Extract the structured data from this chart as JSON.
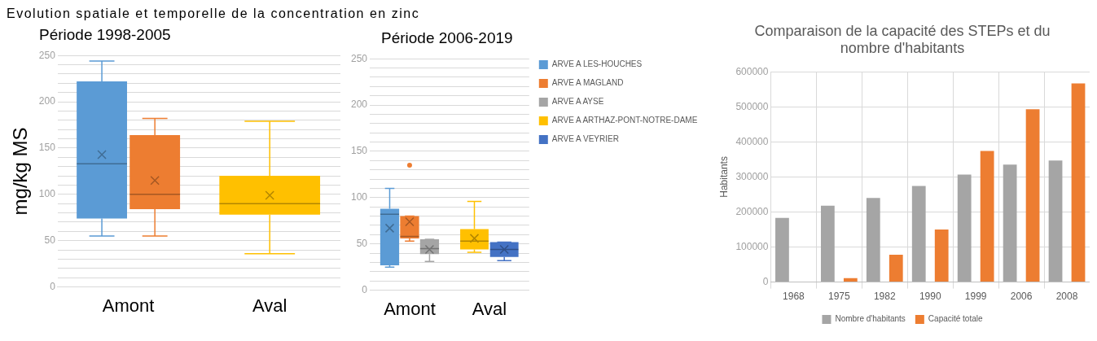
{
  "chart_data": [
    {
      "type": "box",
      "annotations": [
        "Evolution spatiale et temporelle de la concentration en zinc"
      ],
      "title": "Période 1998-2005",
      "ylabel": "mg/kg MS",
      "categories": [
        "Amont",
        "Aval"
      ],
      "ylim": [
        0,
        250
      ],
      "yticks": [
        0,
        {
          "value": 10,
          "label": null
        },
        {
          "value": 20,
          "label": null
        },
        {
          "value": 30,
          "label": null
        },
        {
          "value": 40,
          "label": null
        },
        50,
        {
          "value": 60,
          "label": null
        },
        {
          "value": 70,
          "label": null
        },
        {
          "value": 80,
          "label": null
        },
        {
          "value": 90,
          "label": null
        },
        100,
        {
          "value": 110,
          "label": null
        },
        {
          "value": 120,
          "label": null
        },
        {
          "value": 130,
          "label": null
        },
        {
          "value": 140,
          "label": null
        },
        150,
        {
          "value": 160,
          "label": null
        },
        {
          "value": 170,
          "label": null
        },
        {
          "value": 180,
          "label": null
        },
        {
          "value": 190,
          "label": null
        },
        200,
        {
          "value": 210,
          "label": null
        },
        {
          "value": 220,
          "label": null
        },
        {
          "value": 230,
          "label": null
        },
        {
          "value": 240,
          "label": null
        },
        250
      ],
      "grid": "y",
      "series": [
        {
          "color": "#5b9bd5",
          "boxes": [
            {
              "low": 55,
              "q1": 74,
              "median": 133,
              "q3": 222,
              "high": 244,
              "mean": 143
            },
            null
          ]
        },
        {
          "color": "#ed7d31",
          "boxes": [
            {
              "low": 55,
              "q1": 84,
              "median": 100,
              "q3": 164,
              "high": 182,
              "mean": 115
            },
            null
          ]
        },
        {
          "color": "#ffc000",
          "boxes": [
            null,
            {
              "low": 36,
              "q1": 78,
              "median": 90,
              "q3": 120,
              "high": 179,
              "mean": 99
            }
          ]
        }
      ]
    },
    {
      "type": "box",
      "title": "Période 2006-2019",
      "categories": [
        "Amont",
        "Aval"
      ],
      "ylim": [
        0,
        250
      ],
      "yticks": [
        0,
        {
          "value": 10,
          "label": null
        },
        {
          "value": 20,
          "label": null
        },
        {
          "value": 30,
          "label": null
        },
        {
          "value": 40,
          "label": null
        },
        50,
        {
          "value": 60,
          "label": null
        },
        {
          "value": 70,
          "label": null
        },
        {
          "value": 80,
          "label": null
        },
        {
          "value": 90,
          "label": null
        },
        100,
        {
          "value": 110,
          "label": null
        },
        {
          "value": 120,
          "label": null
        },
        {
          "value": 130,
          "label": null
        },
        {
          "value": 140,
          "label": null
        },
        150,
        {
          "value": 160,
          "label": null
        },
        {
          "value": 170,
          "label": null
        },
        {
          "value": 180,
          "label": null
        },
        {
          "value": 190,
          "label": null
        },
        200,
        {
          "value": 210,
          "label": null
        },
        {
          "value": 220,
          "label": null
        },
        {
          "value": 230,
          "label": null
        },
        {
          "value": 240,
          "label": null
        },
        250
      ],
      "grid": "y",
      "legend": "top right",
      "series": [
        {
          "name": "ARVE A LES-HOUCHES",
          "color": "#5b9bd5",
          "boxes": [
            {
              "low": 25,
              "q1": 27,
              "median": 82,
              "q3": 88,
              "high": 110,
              "mean": 67
            },
            null
          ]
        },
        {
          "name": "ARVE A MAGLAND",
          "color": "#ed7d31",
          "boxes": [
            {
              "low": 53,
              "q1": 56,
              "median": 58,
              "q3": 80,
              "high": 80,
              "mean": 74,
              "outliers": [
                135
              ]
            },
            null
          ]
        },
        {
          "name": "ARVE A AYSE",
          "color": "#a5a5a5",
          "boxes": [
            {
              "low": 31,
              "q1": 39,
              "median": 45,
              "q3": 55,
              "high": 55,
              "mean": 44
            },
            null
          ]
        },
        {
          "name": "ARVE A ARTHAZ-PONT-NOTRE-DAME",
          "color": "#ffc000",
          "boxes": [
            null,
            {
              "low": 41,
              "q1": 44,
              "median": 53,
              "q3": 66,
              "high": 96,
              "mean": 56
            }
          ]
        },
        {
          "name": "ARVE A VEYRIER",
          "color": "#4472c4",
          "boxes": [
            null,
            {
              "low": 32,
              "q1": 36,
              "median": 44,
              "q3": 52,
              "high": 52,
              "mean": 44
            }
          ]
        }
      ]
    },
    {
      "type": "bar",
      "title": "Comparaison de la capacité des STEPs et du nombre d'habitants",
      "ylabel": "Habitants",
      "categories": [
        "1968",
        "1975",
        "1982",
        "1990",
        "1999",
        "2006",
        "2008"
      ],
      "ylim": [
        0,
        600000
      ],
      "yticks": [
        0,
        100000,
        200000,
        300000,
        400000,
        500000,
        600000
      ],
      "grid": true,
      "legend": "bottom",
      "series": [
        {
          "name": "Nombre d'habitants",
          "color": "#a5a5a5",
          "values": [
            183000,
            218000,
            240000,
            274000,
            307000,
            335000,
            347000
          ]
        },
        {
          "name": "Capacité totale",
          "color": "#ed7d31",
          "values": [
            0,
            11000,
            78000,
            150000,
            374000,
            493000,
            567000
          ]
        }
      ]
    }
  ]
}
